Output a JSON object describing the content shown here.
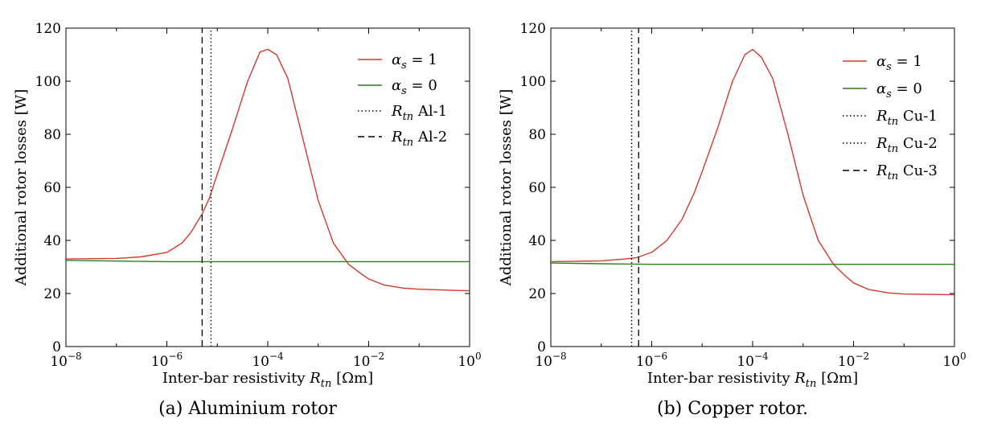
{
  "colors": {
    "red": "#d23a2e",
    "green": "#2e7d1e",
    "black": "#000000"
  },
  "chart_data": [
    {
      "type": "line",
      "caption": "(a)  Aluminium rotor",
      "xlabel": "Inter-bar resistivity R_tn [Ωm]",
      "ylabel": "Additional rotor losses [W]",
      "x_scale": "log",
      "xlim": [
        1e-08,
        1
      ],
      "ylim": [
        0,
        120
      ],
      "x_ticks": [
        1e-08,
        1e-06,
        0.0001,
        0.01,
        1
      ],
      "x_tick_exponents": [
        "−8",
        "−6",
        "−4",
        "−2",
        "0"
      ],
      "y_ticks": [
        0,
        20,
        40,
        60,
        80,
        100,
        120
      ],
      "legend_position": "top-right",
      "grid": false,
      "series": [
        {
          "name": "α_s = 1",
          "color": "red",
          "style": "solid",
          "x": [
            1e-08,
            1e-07,
            3e-07,
            1e-06,
            2e-06,
            3e-06,
            5e-06,
            7e-06,
            1e-05,
            2e-05,
            4e-05,
            7e-05,
            0.0001,
            0.00015,
            0.00025,
            0.0005,
            0.001,
            0.002,
            0.004,
            0.007,
            0.01,
            0.02,
            0.05,
            0.1,
            1
          ],
          "y": [
            33,
            33.2,
            33.8,
            35.5,
            39,
            43,
            50,
            56,
            65,
            82,
            100,
            111,
            112,
            110,
            101,
            78,
            55,
            39,
            31,
            27.5,
            25.5,
            23.2,
            22,
            21.6,
            21
          ]
        },
        {
          "name": "α_s = 0",
          "color": "green",
          "style": "solid",
          "x": [
            1e-08,
            1e-07,
            1e-06,
            1e-05,
            0.0001,
            0.01,
            1
          ],
          "y": [
            32.5,
            32.2,
            32,
            32,
            32,
            32,
            32
          ]
        },
        {
          "name": "R_tn Al-1",
          "color": "black",
          "style": "dotted",
          "x": [
            7.5e-06,
            7.5e-06
          ],
          "y": [
            0,
            120
          ]
        },
        {
          "name": "R_tn Al-2",
          "color": "black",
          "style": "dashed",
          "x": [
            5e-06,
            5e-06
          ],
          "y": [
            0,
            120
          ]
        }
      ]
    },
    {
      "type": "line",
      "caption": "(b)  Copper rotor.",
      "xlabel": "Inter-bar resistivity R_tn [Ωm]",
      "ylabel": "Additional rotor losses [W]",
      "x_scale": "log",
      "xlim": [
        1e-08,
        1
      ],
      "ylim": [
        0,
        120
      ],
      "x_ticks": [
        1e-08,
        1e-06,
        0.0001,
        0.01,
        1
      ],
      "x_tick_exponents": [
        "−8",
        "−6",
        "−4",
        "−2",
        "0"
      ],
      "y_ticks": [
        0,
        20,
        40,
        60,
        80,
        100,
        120
      ],
      "legend_position": "top-right",
      "grid": false,
      "series": [
        {
          "name": "α_s = 1",
          "color": "red",
          "style": "solid",
          "x": [
            1e-08,
            1e-07,
            3e-07,
            5e-07,
            1e-06,
            2e-06,
            4e-06,
            7e-06,
            1e-05,
            2e-05,
            4e-05,
            7e-05,
            0.0001,
            0.00015,
            0.00025,
            0.0005,
            0.001,
            0.002,
            0.004,
            0.007,
            0.01,
            0.02,
            0.05,
            0.1,
            1
          ],
          "y": [
            32,
            32.3,
            33,
            33.5,
            35.5,
            40,
            48,
            58,
            66,
            82,
            100,
            110,
            112,
            109,
            101,
            80,
            57,
            40,
            31,
            26.5,
            24,
            21.5,
            20.2,
            19.8,
            19.5
          ]
        },
        {
          "name": "α_s = 0",
          "color": "green",
          "style": "solid",
          "x": [
            1e-08,
            1e-07,
            1e-06,
            1e-05,
            0.0001,
            0.01,
            1
          ],
          "y": [
            31.5,
            31.2,
            31,
            31,
            31,
            31,
            31
          ]
        },
        {
          "name": "R_tn Cu-1",
          "color": "black",
          "style": "dotted",
          "x": [
            4e-07,
            4e-07
          ],
          "y": [
            0,
            120
          ]
        },
        {
          "name": "R_tn Cu-2",
          "color": "black",
          "style": "dotted",
          "x": [
            4e-07,
            4e-07
          ],
          "y": [
            0,
            120
          ]
        },
        {
          "name": "R_tn Cu-3",
          "color": "black",
          "style": "dashed",
          "x": [
            5.5e-07,
            5.5e-07
          ],
          "y": [
            0,
            120
          ]
        }
      ]
    }
  ]
}
